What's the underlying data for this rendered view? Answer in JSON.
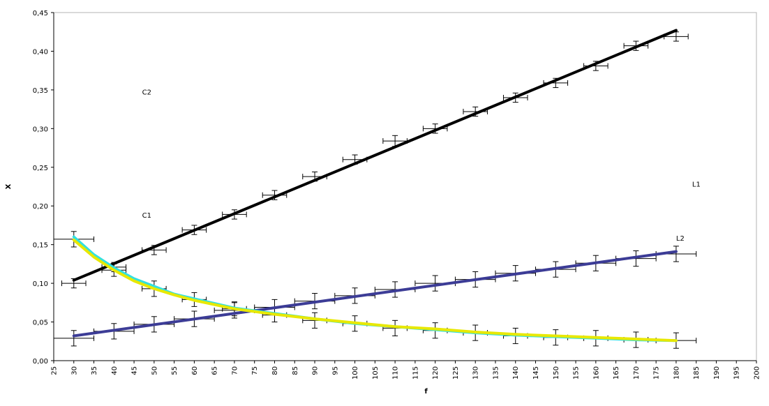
{
  "chart_data": {
    "type": "line",
    "title": "",
    "xlabel": "f",
    "ylabel": "X",
    "xlim": [
      25,
      200
    ],
    "ylim": [
      0,
      0.45
    ],
    "x_ticks": [
      "25",
      "30",
      "35",
      "40",
      "45",
      "50",
      "55",
      "60",
      "65",
      "70",
      "75",
      "80",
      "85",
      "90",
      "95",
      "100",
      "105",
      "110",
      "115",
      "120",
      "125",
      "130",
      "135",
      "140",
      "145",
      "150",
      "155",
      "160",
      "165",
      "170",
      "175",
      "180",
      "185",
      "190",
      "195",
      "200"
    ],
    "y_ticks": [
      "0,00",
      "0,05",
      "0,10",
      "0,15",
      "0,20",
      "0,25",
      "0,30",
      "0,35",
      "0,40",
      "0,45"
    ],
    "grid": false,
    "legend": "none",
    "annotations": [
      {
        "text": "C2",
        "x": 47,
        "y": 0.344
      },
      {
        "text": "C1",
        "x": 47,
        "y": 0.185
      },
      {
        "text": "L1",
        "x": 184,
        "y": 0.225
      },
      {
        "text": "L2",
        "x": 180,
        "y": 0.155
      }
    ],
    "lines": [
      {
        "color": "#000000",
        "points": [
          [
            30,
            0.104
          ],
          [
            180,
            0.427
          ]
        ]
      },
      {
        "color": "#3c3c96",
        "points": [
          [
            30,
            0.032
          ],
          [
            180,
            0.141
          ]
        ]
      },
      {
        "color": "#33e0e0",
        "points": [
          [
            30,
            0.16
          ],
          [
            35,
            0.137
          ],
          [
            40,
            0.12
          ],
          [
            45,
            0.106
          ],
          [
            50,
            0.096
          ],
          [
            55,
            0.086
          ],
          [
            60,
            0.08
          ],
          [
            70,
            0.068
          ],
          [
            80,
            0.061
          ],
          [
            90,
            0.054
          ],
          [
            100,
            0.048
          ],
          [
            110,
            0.044
          ],
          [
            120,
            0.04
          ],
          [
            130,
            0.036
          ],
          [
            140,
            0.033
          ],
          [
            150,
            0.031
          ],
          [
            160,
            0.029
          ],
          [
            170,
            0.027
          ],
          [
            180,
            0.026
          ]
        ]
      },
      {
        "color": "#e8e800",
        "points": [
          [
            30,
            0.156
          ],
          [
            35,
            0.134
          ],
          [
            40,
            0.117
          ],
          [
            45,
            0.103
          ],
          [
            50,
            0.093
          ],
          [
            55,
            0.085
          ],
          [
            60,
            0.078
          ],
          [
            70,
            0.067
          ],
          [
            80,
            0.06
          ],
          [
            90,
            0.054
          ],
          [
            100,
            0.049
          ],
          [
            110,
            0.044
          ],
          [
            120,
            0.041
          ],
          [
            130,
            0.037
          ],
          [
            140,
            0.034
          ],
          [
            150,
            0.032
          ],
          [
            160,
            0.03
          ],
          [
            170,
            0.028
          ],
          [
            180,
            0.026
          ]
        ]
      }
    ],
    "error_bar_series": [
      {
        "name": "",
        "points": [
          {
            "x": 30,
            "y": 0.157,
            "xerr": 5,
            "yerr": 0.01
          },
          {
            "x": 40,
            "y": 0.117,
            "xerr": 3,
            "yerr": 0.008
          },
          {
            "x": 50,
            "y": 0.093,
            "xerr": 3,
            "yerr": 0.01
          },
          {
            "x": 60,
            "y": 0.079,
            "xerr": 3,
            "yerr": 0.009
          },
          {
            "x": 70,
            "y": 0.067,
            "xerr": 3,
            "yerr": 0.009
          },
          {
            "x": 80,
            "y": 0.059,
            "xerr": 3,
            "yerr": 0.009
          },
          {
            "x": 90,
            "y": 0.052,
            "xerr": 3,
            "yerr": 0.01
          },
          {
            "x": 100,
            "y": 0.048,
            "xerr": 3,
            "yerr": 0.01
          },
          {
            "x": 110,
            "y": 0.042,
            "xerr": 3,
            "yerr": 0.01
          },
          {
            "x": 120,
            "y": 0.039,
            "xerr": 3,
            "yerr": 0.01
          },
          {
            "x": 130,
            "y": 0.036,
            "xerr": 3,
            "yerr": 0.01
          },
          {
            "x": 140,
            "y": 0.032,
            "xerr": 3,
            "yerr": 0.01
          },
          {
            "x": 150,
            "y": 0.03,
            "xerr": 3,
            "yerr": 0.01
          },
          {
            "x": 160,
            "y": 0.029,
            "xerr": 3,
            "yerr": 0.01
          },
          {
            "x": 170,
            "y": 0.027,
            "xerr": 3,
            "yerr": 0.01
          },
          {
            "x": 180,
            "y": 0.026,
            "xerr": 5,
            "yerr": 0.01
          }
        ]
      },
      {
        "name": "",
        "points": [
          {
            "x": 30,
            "y": 0.029,
            "xerr": 5,
            "yerr": 0.01
          },
          {
            "x": 40,
            "y": 0.038,
            "xerr": 5,
            "yerr": 0.01
          },
          {
            "x": 50,
            "y": 0.047,
            "xerr": 5,
            "yerr": 0.01
          },
          {
            "x": 60,
            "y": 0.054,
            "xerr": 5,
            "yerr": 0.01
          },
          {
            "x": 70,
            "y": 0.065,
            "xerr": 5,
            "yerr": 0.01
          },
          {
            "x": 80,
            "y": 0.069,
            "xerr": 5,
            "yerr": 0.01
          },
          {
            "x": 90,
            "y": 0.077,
            "xerr": 5,
            "yerr": 0.01
          },
          {
            "x": 100,
            "y": 0.084,
            "xerr": 5,
            "yerr": 0.01
          },
          {
            "x": 110,
            "y": 0.092,
            "xerr": 5,
            "yerr": 0.01
          },
          {
            "x": 120,
            "y": 0.1,
            "xerr": 5,
            "yerr": 0.01
          },
          {
            "x": 130,
            "y": 0.105,
            "xerr": 5,
            "yerr": 0.01
          },
          {
            "x": 140,
            "y": 0.113,
            "xerr": 5,
            "yerr": 0.01
          },
          {
            "x": 150,
            "y": 0.118,
            "xerr": 5,
            "yerr": 0.01
          },
          {
            "x": 160,
            "y": 0.126,
            "xerr": 5,
            "yerr": 0.01
          },
          {
            "x": 170,
            "y": 0.132,
            "xerr": 5,
            "yerr": 0.01
          },
          {
            "x": 180,
            "y": 0.138,
            "xerr": 5,
            "yerr": 0.01
          }
        ]
      },
      {
        "name": "",
        "points": [
          {
            "x": 30,
            "y": 0.1,
            "xerr": 3,
            "yerr": 0.006
          },
          {
            "x": 40,
            "y": 0.121,
            "xerr": 3,
            "yerr": 0.006
          },
          {
            "x": 50,
            "y": 0.143,
            "xerr": 3,
            "yerr": 0.006
          },
          {
            "x": 60,
            "y": 0.169,
            "xerr": 3,
            "yerr": 0.006
          },
          {
            "x": 70,
            "y": 0.189,
            "xerr": 3,
            "yerr": 0.006
          },
          {
            "x": 80,
            "y": 0.214,
            "xerr": 3,
            "yerr": 0.006
          },
          {
            "x": 90,
            "y": 0.238,
            "xerr": 3,
            "yerr": 0.006
          },
          {
            "x": 100,
            "y": 0.26,
            "xerr": 3,
            "yerr": 0.006
          },
          {
            "x": 110,
            "y": 0.284,
            "xerr": 3,
            "yerr": 0.007
          },
          {
            "x": 120,
            "y": 0.3,
            "xerr": 3,
            "yerr": 0.006
          },
          {
            "x": 130,
            "y": 0.322,
            "xerr": 3,
            "yerr": 0.006
          },
          {
            "x": 140,
            "y": 0.34,
            "xerr": 3,
            "yerr": 0.006
          },
          {
            "x": 150,
            "y": 0.359,
            "xerr": 3,
            "yerr": 0.006
          },
          {
            "x": 160,
            "y": 0.381,
            "xerr": 3,
            "yerr": 0.006
          },
          {
            "x": 170,
            "y": 0.407,
            "xerr": 3,
            "yerr": 0.006
          },
          {
            "x": 180,
            "y": 0.419,
            "xerr": 3,
            "yerr": 0.006
          }
        ]
      }
    ]
  }
}
